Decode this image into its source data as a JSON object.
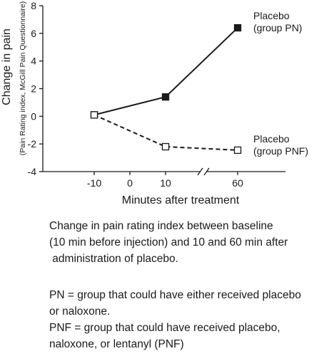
{
  "chart_data": {
    "type": "line",
    "ylabel": "Change in pain",
    "ylabel_sub": "(Pain Rating index, McGill Pain Questionnaire)",
    "xlabel": "Minutes after treatment",
    "ylim": [
      -4,
      8
    ],
    "yticks": [
      -4,
      -2,
      0,
      2,
      4,
      6,
      8
    ],
    "xticks": [
      "-10",
      "0",
      "10",
      "60"
    ],
    "x_axis_break": true,
    "series": [
      {
        "name_lines": [
          "Placebo",
          "(group PN)"
        ],
        "x": [
          "-10",
          "10",
          "60"
        ],
        "values": [
          0.1,
          1.4,
          6.4
        ],
        "style": "solid",
        "marker": "filled-square",
        "color": "#1a1a1a"
      },
      {
        "name_lines": [
          "Placebo",
          "(group PNF)"
        ],
        "x": [
          "-10",
          "10",
          "60"
        ],
        "values": [
          0.1,
          -2.2,
          -2.45
        ],
        "style": "dashed",
        "marker": "open-square",
        "color": "#1a1a1a"
      }
    ]
  },
  "caption": {
    "lines": [
      "Change in pain rating index between baseline",
      "(10 min before injection) and 10 and 60 min after",
      " administration of placebo."
    ]
  },
  "notes": {
    "lines": [
      "PN = group that could have either received placebo",
      "or naloxone.",
      "PNF = group that could have received placebo,",
      "naloxone, or lentanyl (PNF)"
    ]
  }
}
